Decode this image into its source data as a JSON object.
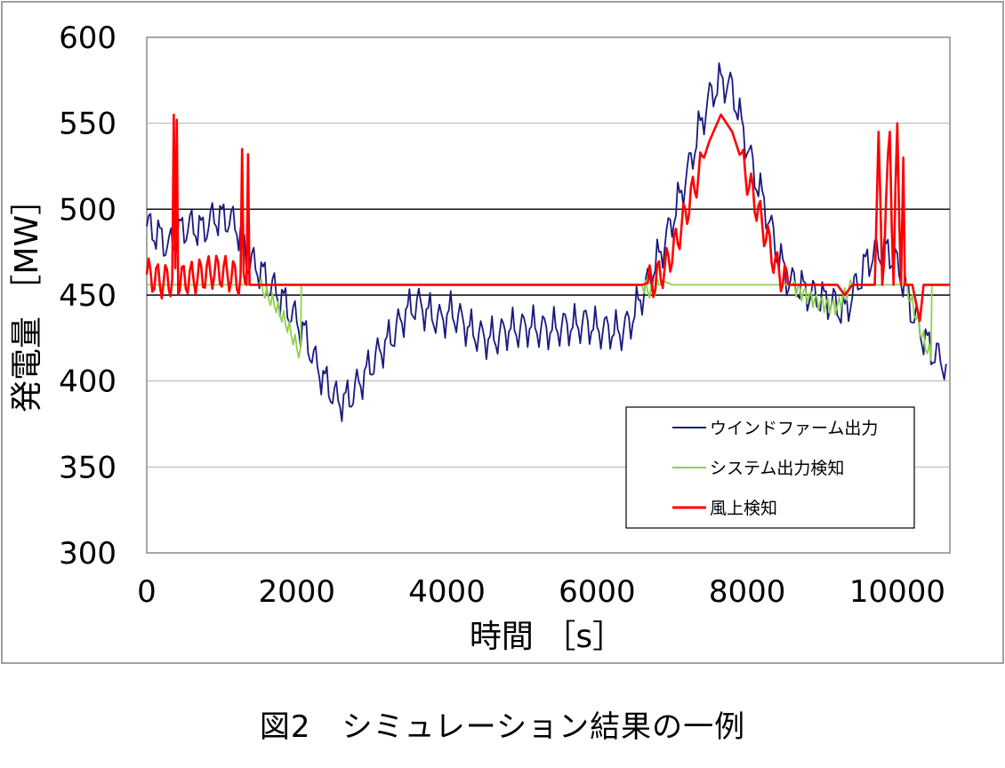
{
  "caption": "図2　シミュレーション結果の一例",
  "chart_data": {
    "type": "line",
    "xlabel": "時間 ［s］",
    "ylabel": "発電量 ［MW］",
    "xlim": [
      0,
      10700
    ],
    "ylim": [
      300,
      600
    ],
    "xticks": [
      0,
      2000,
      4000,
      6000,
      8000,
      10000
    ],
    "yticks": [
      300,
      350,
      400,
      450,
      500,
      550,
      600
    ],
    "reference_lines": [
      450,
      500
    ],
    "grid": "horizontal",
    "legend_position": "bottom-right",
    "series": [
      {
        "name": "ウインドファーム出力",
        "color": "#1a1a80",
        "x": [
          0,
          150,
          300,
          450,
          600,
          750,
          900,
          1050,
          1200,
          1350,
          1500,
          1650,
          1800,
          1950,
          2100,
          2250,
          2400,
          2550,
          2700,
          2850,
          3000,
          3150,
          3300,
          3450,
          3600,
          3750,
          3900,
          4050,
          4200,
          4350,
          4500,
          4650,
          4800,
          4950,
          5100,
          5250,
          5400,
          5550,
          5700,
          5850,
          6000,
          6150,
          6300,
          6450,
          6600,
          6750,
          6900,
          7050,
          7200,
          7350,
          7500,
          7650,
          7800,
          7950,
          8100,
          8250,
          8400,
          8550,
          8700,
          8850,
          9000,
          9150,
          9300,
          9450,
          9600,
          9750,
          9900,
          10050,
          10200,
          10350,
          10500,
          10650
        ],
        "y": [
          490,
          485,
          478,
          488,
          490,
          488,
          495,
          495,
          490,
          470,
          465,
          455,
          448,
          438,
          428,
          410,
          398,
          388,
          390,
          400,
          410,
          420,
          428,
          440,
          445,
          440,
          435,
          440,
          435,
          428,
          425,
          425,
          430,
          430,
          432,
          430,
          430,
          432,
          432,
          434,
          430,
          430,
          428,
          435,
          450,
          465,
          480,
          500,
          520,
          545,
          565,
          575,
          570,
          545,
          520,
          500,
          475,
          458,
          455,
          450,
          448,
          445,
          440,
          455,
          470,
          475,
          475,
          462,
          440,
          425,
          415,
          410
        ]
      },
      {
        "name": "システム出力検知",
        "color": "#8fd14f",
        "x": [
          0,
          1500,
          1600,
          1700,
          1800,
          1900,
          2000,
          2050,
          2060,
          6600,
          6700,
          6800,
          6900,
          7000,
          8600,
          8700,
          8800,
          8900,
          9000,
          9100,
          9200,
          9300,
          9400,
          10100,
          10200,
          10300,
          10400,
          10450,
          10460,
          10700
        ],
        "y": [
          456,
          456,
          450,
          445,
          438,
          430,
          420,
          415,
          456,
          456,
          452,
          455,
          458,
          456,
          456,
          452,
          450,
          447,
          445,
          444,
          443,
          450,
          456,
          456,
          445,
          430,
          418,
          415,
          456,
          456
        ]
      },
      {
        "name": "風上検知",
        "color": "#ff0000",
        "x": [
          0,
          100,
          200,
          340,
          360,
          380,
          400,
          420,
          440,
          600,
          750,
          900,
          1050,
          1200,
          1250,
          1270,
          1290,
          1330,
          1350,
          1370,
          1400,
          1600,
          6450,
          6600,
          6750,
          6900,
          7050,
          7200,
          7350,
          7500,
          7650,
          7800,
          7950,
          8100,
          8250,
          8400,
          8550,
          8700,
          9200,
          9300,
          9400,
          9700,
          9750,
          9800,
          9900,
          9950,
          10000,
          10050,
          10080,
          10100,
          10200,
          10300,
          10350,
          10500,
          10700
        ],
        "y": [
          462,
          460,
          458,
          459,
          555,
          458,
          552,
          460,
          459,
          460,
          462,
          464,
          463,
          460,
          458,
          535,
          458,
          456,
          532,
          456,
          456,
          456,
          456,
          456,
          458,
          465,
          480,
          500,
          520,
          540,
          555,
          545,
          525,
          505,
          485,
          465,
          456,
          456,
          456,
          450,
          456,
          456,
          545,
          456,
          545,
          456,
          550,
          456,
          530,
          456,
          456,
          435,
          456,
          456,
          456
        ]
      }
    ]
  }
}
